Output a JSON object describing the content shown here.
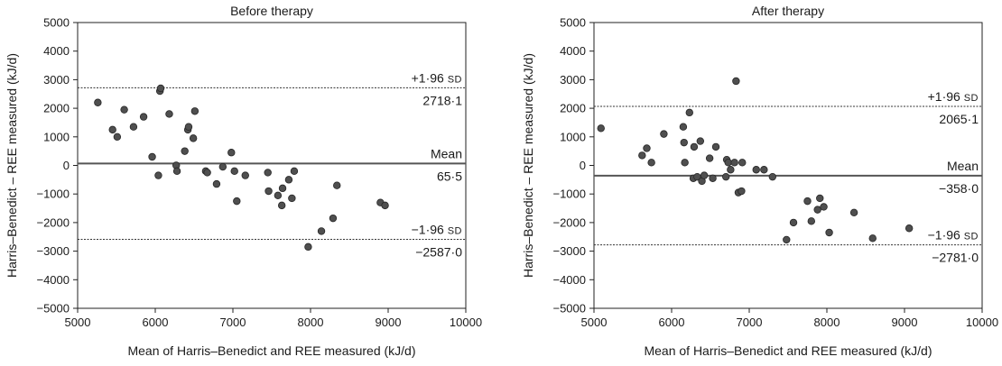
{
  "chart_data": [
    {
      "type": "scatter",
      "title": "Before therapy",
      "xlabel": "Mean of Harris–Benedict and REE measured (kJ/d)",
      "ylabel": "Harris–Benedict – REE measured (kJ/d)",
      "xlim": [
        5000,
        10000
      ],
      "ylim": [
        -5000,
        5000
      ],
      "xticks": [
        "5000",
        "6000",
        "7000",
        "8000",
        "9000",
        "10000"
      ],
      "yticks": [
        "5000",
        "4000",
        "3000",
        "2000",
        "1000",
        "0",
        "−1000",
        "−2000",
        "−3000",
        "−4000",
        "−5000"
      ],
      "lines": {
        "upper": {
          "value": 2718.1,
          "label_prefix": "+1·96 ",
          "label_sd": "SD",
          "value_label": "2718·1"
        },
        "mean": {
          "value": 65.5,
          "label": "Mean",
          "value_label": "65·5"
        },
        "lower": {
          "value": -2587.0,
          "label_prefix": "−1·96 ",
          "label_sd": "SD",
          "value_label": "−2587·0"
        }
      },
      "points": [
        [
          5260,
          2200
        ],
        [
          5450,
          1250
        ],
        [
          5510,
          1000
        ],
        [
          5600,
          1950
        ],
        [
          5720,
          1350
        ],
        [
          5850,
          1700
        ],
        [
          5960,
          300
        ],
        [
          6040,
          -350
        ],
        [
          6060,
          2600
        ],
        [
          6070,
          2700
        ],
        [
          6180,
          1800
        ],
        [
          6270,
          0
        ],
        [
          6280,
          -200
        ],
        [
          6380,
          500
        ],
        [
          6420,
          1250
        ],
        [
          6430,
          1350
        ],
        [
          6490,
          950
        ],
        [
          6510,
          1900
        ],
        [
          6650,
          -200
        ],
        [
          6670,
          -250
        ],
        [
          6790,
          -650
        ],
        [
          6870,
          -50
        ],
        [
          6980,
          450
        ],
        [
          7020,
          -200
        ],
        [
          7050,
          -1250
        ],
        [
          7160,
          -350
        ],
        [
          7450,
          -250
        ],
        [
          7460,
          -900
        ],
        [
          7580,
          -1050
        ],
        [
          7630,
          -1400
        ],
        [
          7640,
          -800
        ],
        [
          7720,
          -500
        ],
        [
          7760,
          -1150
        ],
        [
          7790,
          -200
        ],
        [
          7970,
          -2850
        ],
        [
          8140,
          -2300
        ],
        [
          8290,
          -1850
        ],
        [
          8340,
          -700
        ],
        [
          8900,
          -1300
        ],
        [
          8960,
          -1400
        ]
      ]
    },
    {
      "type": "scatter",
      "title": "After therapy",
      "xlabel": "Mean of Harris–Benedict and REE measured (kJ/d)",
      "ylabel": "Harris–Benedict – REE measured (kJ/d)",
      "xlim": [
        5000,
        10000
      ],
      "ylim": [
        -5000,
        5000
      ],
      "xticks": [
        "5000",
        "6000",
        "7000",
        "8000",
        "9000",
        "10000"
      ],
      "yticks": [
        "5000",
        "4000",
        "3000",
        "2000",
        "1000",
        "0",
        "−1000",
        "−2000",
        "−3000",
        "−4000",
        "−5000"
      ],
      "lines": {
        "upper": {
          "value": 2065.1,
          "label_prefix": "+1·96 ",
          "label_sd": "SD",
          "value_label": "2065·1"
        },
        "mean": {
          "value": -358.0,
          "label": "Mean",
          "value_label": "−358·0"
        },
        "lower": {
          "value": -2781.0,
          "label_prefix": "−1·96 ",
          "label_sd": "SD",
          "value_label": "−2781·0"
        }
      },
      "points": [
        [
          5090,
          1300
        ],
        [
          5620,
          350
        ],
        [
          5680,
          600
        ],
        [
          5740,
          100
        ],
        [
          5900,
          1100
        ],
        [
          6150,
          1350
        ],
        [
          6160,
          800
        ],
        [
          6170,
          100
        ],
        [
          6230,
          1850
        ],
        [
          6280,
          -450
        ],
        [
          6290,
          650
        ],
        [
          6330,
          -400
        ],
        [
          6370,
          850
        ],
        [
          6390,
          -550
        ],
        [
          6420,
          -350
        ],
        [
          6490,
          250
        ],
        [
          6530,
          -450
        ],
        [
          6570,
          650
        ],
        [
          6700,
          -400
        ],
        [
          6710,
          200
        ],
        [
          6730,
          100
        ],
        [
          6760,
          -150
        ],
        [
          6810,
          100
        ],
        [
          6830,
          2950
        ],
        [
          6860,
          -950
        ],
        [
          6900,
          -900
        ],
        [
          6910,
          100
        ],
        [
          7090,
          -150
        ],
        [
          7190,
          -150
        ],
        [
          7300,
          -400
        ],
        [
          7480,
          -2600
        ],
        [
          7570,
          -2000
        ],
        [
          7750,
          -1250
        ],
        [
          7800,
          -1950
        ],
        [
          7880,
          -1550
        ],
        [
          7910,
          -1150
        ],
        [
          7960,
          -1450
        ],
        [
          8030,
          -2350
        ],
        [
          8350,
          -1650
        ],
        [
          8590,
          -2550
        ],
        [
          9060,
          -2200
        ]
      ]
    }
  ]
}
